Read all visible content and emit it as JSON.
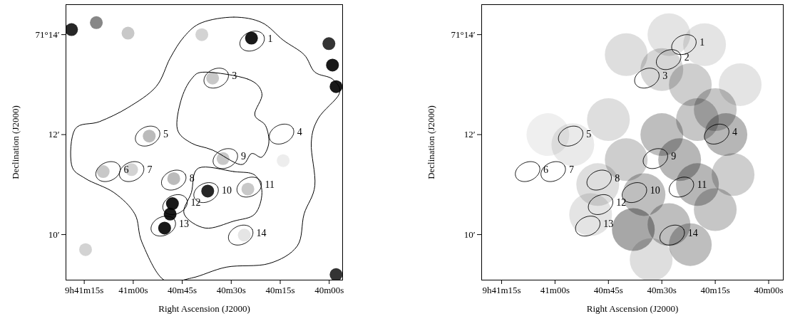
{
  "chart_data": [
    {
      "type": "image",
      "x_label": "Right Ascension (J2000)",
      "y_label": "Declination (J2000)",
      "xlim": [
        80.6,
        -4.1
      ],
      "xticks": [
        {
          "value": 75,
          "label": "9h41m15s"
        },
        {
          "value": 60,
          "label": "41m00s"
        },
        {
          "value": 45,
          "label": "40m45s"
        },
        {
          "value": 30,
          "label": "40m30s"
        },
        {
          "value": 15,
          "label": "40m15s"
        },
        {
          "value": 0,
          "label": "40m00s"
        }
      ],
      "ylim": [
        9.09,
        14.6
      ],
      "yticks": [
        {
          "value": 14,
          "label": "71°14′"
        },
        {
          "value": 12,
          "label": "12′"
        },
        {
          "value": 10,
          "label": "10′"
        }
      ],
      "regions": [
        {
          "label": "1",
          "x": 23.6,
          "y": 13.87
        },
        {
          "label": "3",
          "x": 34.6,
          "y": 13.13
        },
        {
          "label": "4",
          "x": 14.6,
          "y": 12.01
        },
        {
          "label": "5",
          "x": 55.6,
          "y": 11.97
        },
        {
          "label": "6",
          "x": 67.7,
          "y": 11.26
        },
        {
          "label": "7",
          "x": 60.5,
          "y": 11.26
        },
        {
          "label": "8",
          "x": 47.6,
          "y": 11.09
        },
        {
          "label": "9",
          "x": 31.8,
          "y": 11.52
        },
        {
          "label": "10",
          "x": 37.7,
          "y": 10.84
        },
        {
          "label": "11",
          "x": 24.5,
          "y": 10.95
        },
        {
          "label": "12",
          "x": 47.2,
          "y": 10.6
        },
        {
          "label": "13",
          "x": 50.8,
          "y": 10.17
        },
        {
          "label": "14",
          "x": 27.1,
          "y": 9.99
        }
      ],
      "sources": [
        [
          23.8,
          13.93,
          1.0
        ],
        [
          35.7,
          13.13,
          0.35
        ],
        [
          39.0,
          14.0,
          0.3
        ],
        [
          61.6,
          14.03,
          0.35
        ],
        [
          78.9,
          14.1,
          0.95
        ],
        [
          71.3,
          14.24,
          0.6
        ],
        [
          -1.0,
          13.39,
          1.0
        ],
        [
          -2.1,
          12.96,
          1.0
        ],
        [
          0.1,
          13.82,
          0.9
        ],
        [
          55.1,
          11.97,
          0.4
        ],
        [
          32.5,
          11.52,
          0.35
        ],
        [
          47.6,
          11.12,
          0.4
        ],
        [
          24.9,
          10.91,
          0.35
        ],
        [
          37.2,
          10.87,
          0.95
        ],
        [
          48.0,
          10.62,
          1.0
        ],
        [
          48.7,
          10.41,
          1.0
        ],
        [
          50.4,
          10.13,
          1.0
        ],
        [
          69.2,
          11.26,
          0.35
        ],
        [
          60.5,
          11.3,
          0.3
        ],
        [
          -2.1,
          9.2,
          0.9
        ],
        [
          74.6,
          9.7,
          0.3
        ],
        [
          26.0,
          9.99,
          0.2
        ],
        [
          14.1,
          11.48,
          0.15
        ]
      ],
      "contours": [
        [
          [
            39.0,
            14.24
          ],
          [
            29.2,
            14.35
          ],
          [
            20.6,
            14.24
          ],
          [
            14.1,
            13.89
          ],
          [
            7.7,
            13.6
          ],
          [
            4.4,
            13.25
          ],
          [
            -1.0,
            13.11
          ],
          [
            -3.1,
            12.82
          ],
          [
            3.3,
            12.33
          ],
          [
            5.5,
            11.83
          ],
          [
            4.4,
            10.98
          ],
          [
            7.7,
            10.41
          ],
          [
            9.8,
            9.77
          ],
          [
            18.5,
            9.42
          ],
          [
            31.4,
            9.35
          ],
          [
            42.2,
            9.13
          ],
          [
            50.8,
            9.1
          ],
          [
            57.3,
            9.84
          ],
          [
            59.5,
            10.41
          ],
          [
            65.9,
            10.84
          ],
          [
            74.6,
            11.12
          ],
          [
            78.9,
            11.4
          ],
          [
            77.8,
            12.11
          ],
          [
            70.3,
            12.26
          ],
          [
            61.6,
            12.54
          ],
          [
            53.0,
            12.96
          ],
          [
            48.7,
            13.53
          ],
          [
            44.4,
            13.96
          ]
        ],
        [
          [
            37.9,
            13.25
          ],
          [
            24.9,
            13.11
          ],
          [
            20.6,
            12.82
          ],
          [
            22.8,
            12.4
          ],
          [
            19.5,
            12.18
          ],
          [
            18.5,
            11.83
          ],
          [
            20.6,
            11.55
          ],
          [
            23.8,
            11.62
          ],
          [
            27.1,
            11.4
          ],
          [
            35.7,
            11.69
          ],
          [
            42.2,
            11.83
          ],
          [
            46.5,
            12.11
          ],
          [
            45.4,
            12.68
          ],
          [
            42.2,
            13.11
          ]
        ],
        [
          [
            40.0,
            11.33
          ],
          [
            29.2,
            11.26
          ],
          [
            22.8,
            11.19
          ],
          [
            20.6,
            10.84
          ],
          [
            22.8,
            10.41
          ],
          [
            29.2,
            10.27
          ],
          [
            37.9,
            10.13
          ],
          [
            44.4,
            10.41
          ],
          [
            42.2,
            10.84
          ]
        ]
      ]
    },
    {
      "type": "image",
      "x_label": "Right Ascension (J2000)",
      "y_label": "Declination (J2000)",
      "xlim": [
        80.6,
        -4.1
      ],
      "xticks": [
        {
          "value": 75,
          "label": "9h41m15s"
        },
        {
          "value": 60,
          "label": "41m00s"
        },
        {
          "value": 45,
          "label": "40m45s"
        },
        {
          "value": 30,
          "label": "40m30s"
        },
        {
          "value": 15,
          "label": "40m15s"
        },
        {
          "value": 0,
          "label": "40m00s"
        }
      ],
      "ylim": [
        9.09,
        14.6
      ],
      "yticks": [
        {
          "value": 14,
          "label": "71°14′"
        },
        {
          "value": 12,
          "label": "12′"
        },
        {
          "value": 10,
          "label": "10′"
        }
      ],
      "regions": [
        {
          "label": "1",
          "x": 23.8,
          "y": 13.8
        },
        {
          "label": "2",
          "x": 28.1,
          "y": 13.5
        },
        {
          "label": "3",
          "x": 34.2,
          "y": 13.13
        },
        {
          "label": "4",
          "x": 14.6,
          "y": 12.01
        },
        {
          "label": "5",
          "x": 55.6,
          "y": 11.97
        },
        {
          "label": "6",
          "x": 67.7,
          "y": 11.26
        },
        {
          "label": "7",
          "x": 60.5,
          "y": 11.26
        },
        {
          "label": "8",
          "x": 47.6,
          "y": 11.09
        },
        {
          "label": "9",
          "x": 31.8,
          "y": 11.52
        },
        {
          "label": "10",
          "x": 37.7,
          "y": 10.84
        },
        {
          "label": "11",
          "x": 24.5,
          "y": 10.95
        },
        {
          "label": "12",
          "x": 47.2,
          "y": 10.6
        },
        {
          "label": "13",
          "x": 50.8,
          "y": 10.17
        },
        {
          "label": "14",
          "x": 27.1,
          "y": 9.99
        }
      ],
      "emission": [
        [
          30,
          12.0,
          0.55
        ],
        [
          25,
          11.5,
          0.6
        ],
        [
          20,
          11.0,
          0.6
        ],
        [
          35,
          10.8,
          0.55
        ],
        [
          40,
          11.5,
          0.45
        ],
        [
          45,
          12.3,
          0.35
        ],
        [
          30,
          13.3,
          0.4
        ],
        [
          22,
          13.0,
          0.45
        ],
        [
          15,
          12.5,
          0.5
        ],
        [
          12,
          12.0,
          0.6
        ],
        [
          20,
          12.3,
          0.5
        ],
        [
          28,
          10.2,
          0.55
        ],
        [
          38,
          10.1,
          0.7
        ],
        [
          22,
          9.8,
          0.55
        ],
        [
          15,
          10.5,
          0.5
        ],
        [
          10,
          11.2,
          0.45
        ],
        [
          48,
          11.0,
          0.35
        ],
        [
          55,
          11.8,
          0.25
        ],
        [
          62,
          12.0,
          0.2
        ],
        [
          40,
          13.6,
          0.35
        ],
        [
          28,
          14.0,
          0.3
        ],
        [
          50,
          10.4,
          0.3
        ],
        [
          33,
          9.5,
          0.35
        ],
        [
          18,
          13.8,
          0.3
        ],
        [
          8,
          13.0,
          0.3
        ]
      ]
    }
  ]
}
